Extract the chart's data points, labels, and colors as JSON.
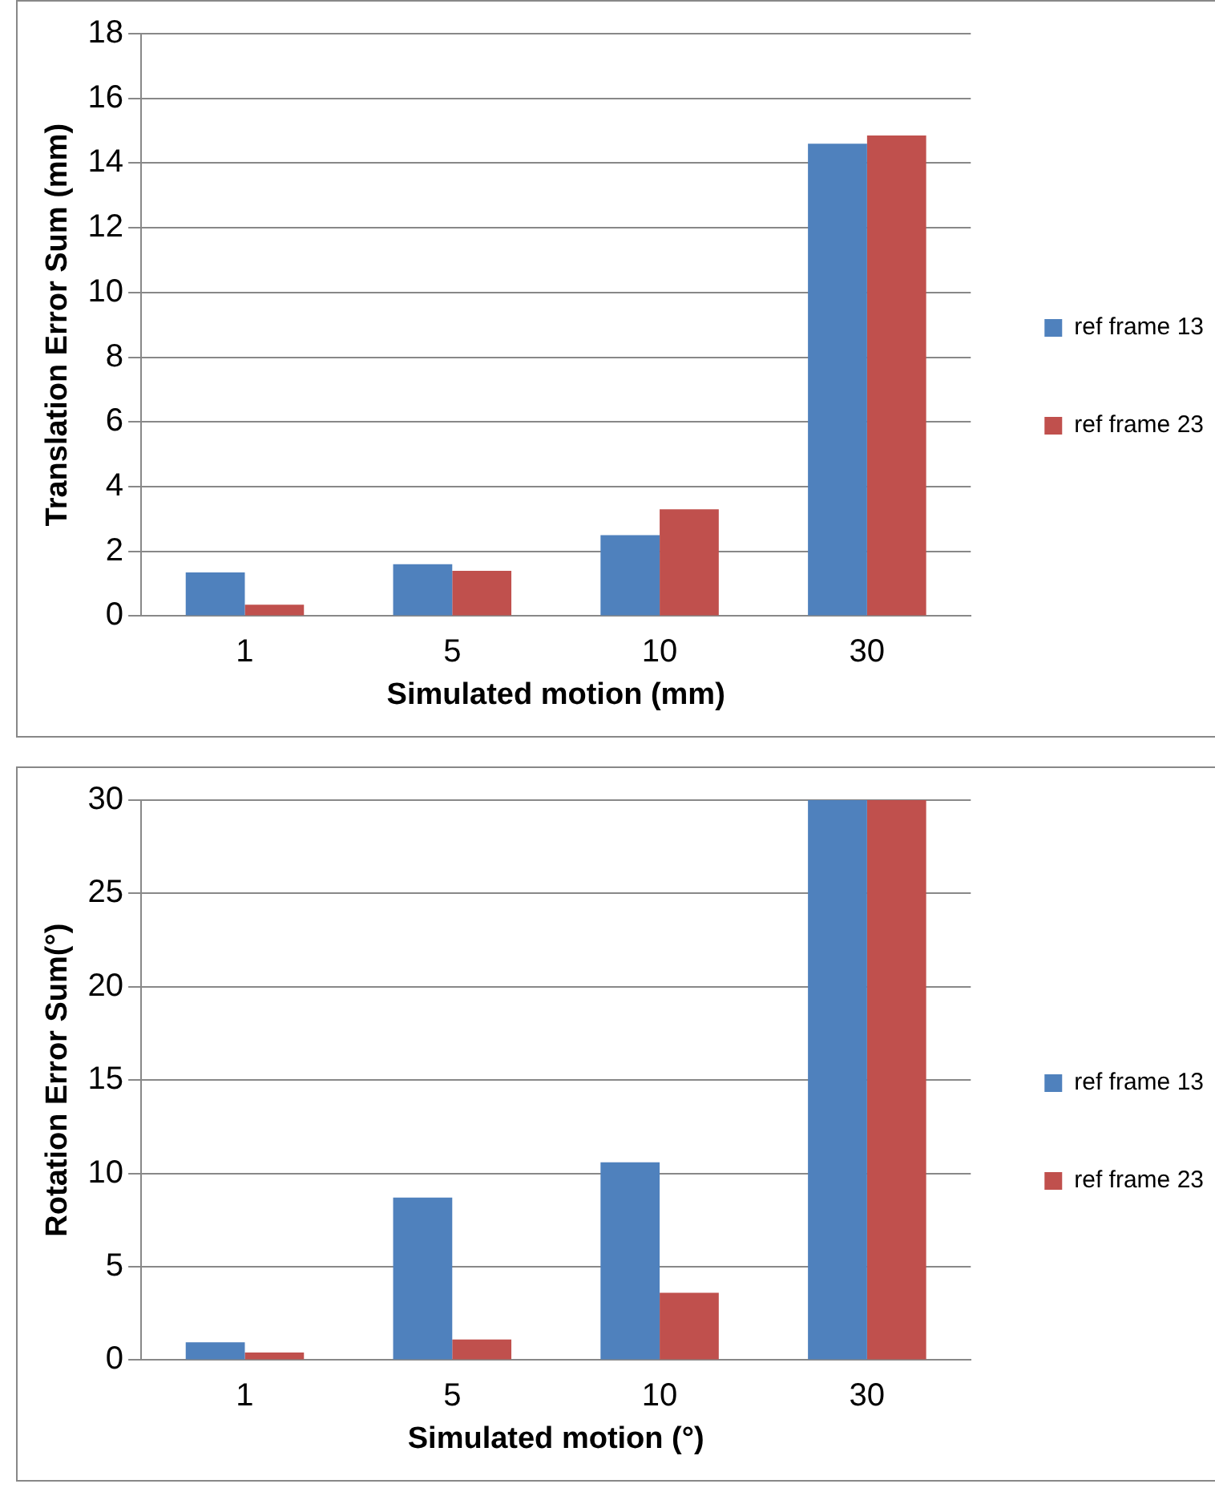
{
  "chart_data": [
    {
      "type": "bar",
      "xlabel": "Simulated motion (mm)",
      "ylabel": "Translation Error Sum (mm)",
      "categories": [
        "1",
        "5",
        "10",
        "30"
      ],
      "series": [
        {
          "name": "ref frame 13",
          "color": "#4f81bd",
          "values": [
            1.35,
            1.6,
            2.5,
            14.6
          ]
        },
        {
          "name": "ref frame 23",
          "color": "#c0504d",
          "values": [
            0.35,
            1.4,
            3.3,
            14.85
          ]
        }
      ],
      "ylim": [
        0,
        18
      ],
      "yticks": [
        0,
        2,
        4,
        6,
        8,
        10,
        12,
        14,
        16,
        18
      ],
      "grid": "y",
      "legend": "right"
    },
    {
      "type": "bar",
      "xlabel": "Simulated motion (°)",
      "ylabel": "Rotation Error Sum(°)",
      "categories": [
        "1",
        "5",
        "10",
        "30"
      ],
      "series": [
        {
          "name": "ref frame 13",
          "color": "#4f81bd",
          "values": [
            0.95,
            8.7,
            10.6,
            30
          ]
        },
        {
          "name": "ref frame 23",
          "color": "#c0504d",
          "values": [
            0.4,
            1.1,
            3.6,
            30
          ]
        }
      ],
      "ylim": [
        0,
        30
      ],
      "yticks": [
        0,
        5,
        10,
        15,
        20,
        25,
        30
      ],
      "grid": "y",
      "legend": "right"
    }
  ]
}
